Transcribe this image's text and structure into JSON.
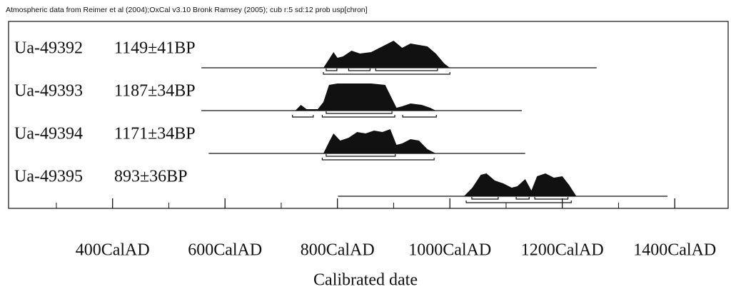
{
  "chart_data": {
    "type": "area",
    "title": "Atmospheric data from Reimer et al (2004);OxCal v3.10 Bronk Ramsey (2005); cub r:5 sd:12 prob usp[chron]",
    "xlabel": "Calibrated date",
    "xlim": [
      215,
      1495
    ],
    "xticks": [
      {
        "value": 400,
        "label": "400CalAD"
      },
      {
        "value": 600,
        "label": "600CalAD"
      },
      {
        "value": 800,
        "label": "800CalAD"
      },
      {
        "value": 1000,
        "label": "1000CalAD"
      },
      {
        "value": 1200,
        "label": "1200CalAD"
      },
      {
        "value": 1400,
        "label": "1400CalAD"
      }
    ],
    "xminor_ticks": [
      300,
      500,
      700,
      900,
      1100,
      1300
    ],
    "color": "#111111",
    "series": [
      {
        "name": "Ua-49392",
        "date": "1149±41BP",
        "line": [
          558,
          1261
        ],
        "x": [
          775,
          785,
          793,
          800,
          810,
          825,
          840,
          860,
          880,
          900,
          915,
          930,
          945,
          960,
          975,
          990,
          1000
        ],
        "values": [
          0,
          0.3,
          0.55,
          0.35,
          0.4,
          0.6,
          0.5,
          0.55,
          0.75,
          0.95,
          0.7,
          0.85,
          0.8,
          0.75,
          0.5,
          0.15,
          0
        ],
        "range68": [
          [
            780,
            799
          ],
          [
            820,
            858
          ],
          [
            868,
            978
          ]
        ],
        "range95": [
          [
            775,
            1000
          ]
        ]
      },
      {
        "name": "Ua-49393",
        "date": "1187±34BP",
        "line": [
          558,
          1128
        ],
        "x": [
          725,
          735,
          745,
          765,
          775,
          785,
          800,
          830,
          860,
          885,
          895,
          905,
          915,
          930,
          950,
          965,
          975
        ],
        "values": [
          0,
          0.2,
          0.05,
          0.05,
          0.3,
          0.9,
          0.95,
          0.95,
          0.95,
          0.9,
          0.5,
          0.1,
          0.15,
          0.25,
          0.2,
          0.1,
          0
        ],
        "range68": [
          [
            780,
            897
          ]
        ],
        "range95": [
          [
            720,
            757
          ],
          [
            773,
            902
          ],
          [
            916,
            976
          ]
        ]
      },
      {
        "name": "Ua-49394",
        "date": "1171±34BP",
        "line": [
          571,
          1134
        ],
        "x": [
          775,
          785,
          793,
          805,
          820,
          835,
          850,
          865,
          880,
          894,
          905,
          915,
          930,
          945,
          960,
          975
        ],
        "values": [
          0,
          0.4,
          0.7,
          0.45,
          0.55,
          0.75,
          0.7,
          0.8,
          0.75,
          0.85,
          0.3,
          0.35,
          0.5,
          0.45,
          0.15,
          0
        ],
        "range68": [
          [
            780,
            903
          ]
        ],
        "range95": [
          [
            773,
            972
          ]
        ]
      },
      {
        "name": "Ua-49395",
        "date": "893±36BP",
        "line": [
          801,
          1387
        ],
        "x": [
          1025,
          1040,
          1055,
          1065,
          1080,
          1095,
          1110,
          1120,
          1134,
          1145,
          1155,
          1170,
          1185,
          1200,
          1212,
          1225
        ],
        "values": [
          0,
          0.3,
          0.75,
          0.8,
          0.55,
          0.45,
          0.3,
          0.35,
          0.6,
          0.2,
          0.7,
          0.8,
          0.65,
          0.7,
          0.4,
          0
        ],
        "range68": [
          [
            1039,
            1086
          ],
          [
            1118,
            1141
          ],
          [
            1151,
            1210
          ]
        ],
        "range95": [
          [
            1029,
            1216
          ]
        ]
      }
    ]
  }
}
